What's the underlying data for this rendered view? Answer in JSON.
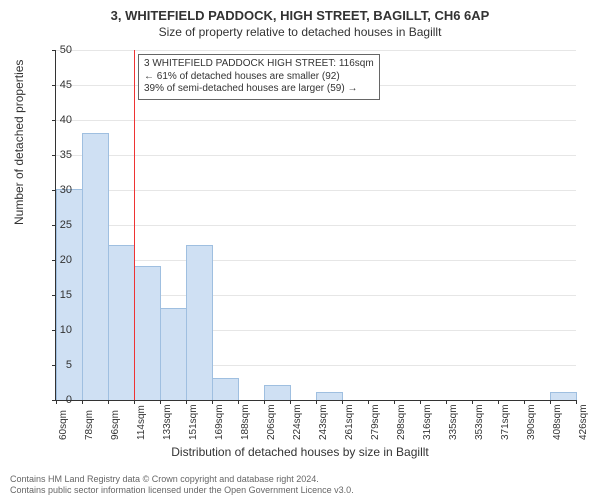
{
  "titles": {
    "line1": "3, WHITEFIELD PADDOCK, HIGH STREET, BAGILLT, CH6 6AP",
    "line2": "Size of property relative to detached houses in Bagillt"
  },
  "axes": {
    "ylabel": "Number of detached properties",
    "xlabel": "Distribution of detached houses by size in Bagillt",
    "ylim": [
      0,
      50
    ],
    "ytick_step": 5,
    "label_fontsize_pt": 12,
    "tick_fontsize_pt": 11
  },
  "histogram": {
    "type": "histogram",
    "bar_color": "#cfe0f3",
    "bar_border": "#9fbfe0",
    "background_color": "#ffffff",
    "grid_color": "#e6e6e6",
    "axis_color": "#333333",
    "xticks": [
      "60sqm",
      "78sqm",
      "96sqm",
      "114sqm",
      "133sqm",
      "151sqm",
      "169sqm",
      "188sqm",
      "206sqm",
      "224sqm",
      "243sqm",
      "261sqm",
      "279sqm",
      "298sqm",
      "316sqm",
      "335sqm",
      "353sqm",
      "371sqm",
      "390sqm",
      "408sqm",
      "426sqm"
    ],
    "values": [
      30,
      38,
      22,
      19,
      13,
      22,
      3,
      0,
      2,
      0,
      1,
      0,
      0,
      0,
      0,
      0,
      0,
      0,
      0,
      1
    ]
  },
  "marker": {
    "color": "#ee3333",
    "bin_index": 3
  },
  "annotation": {
    "line1": "3 WHITEFIELD PADDOCK HIGH STREET: 116sqm",
    "line2": "← 61% of detached houses are smaller (92)",
    "line3": "39% of semi-detached houses are larger (59) →",
    "border_color": "#666666",
    "fontsize_pt": 10
  },
  "footer": {
    "line1": "Contains HM Land Registry data © Crown copyright and database right 2024.",
    "line2": "Contains public sector information licensed under the Open Government Licence v3.0."
  }
}
